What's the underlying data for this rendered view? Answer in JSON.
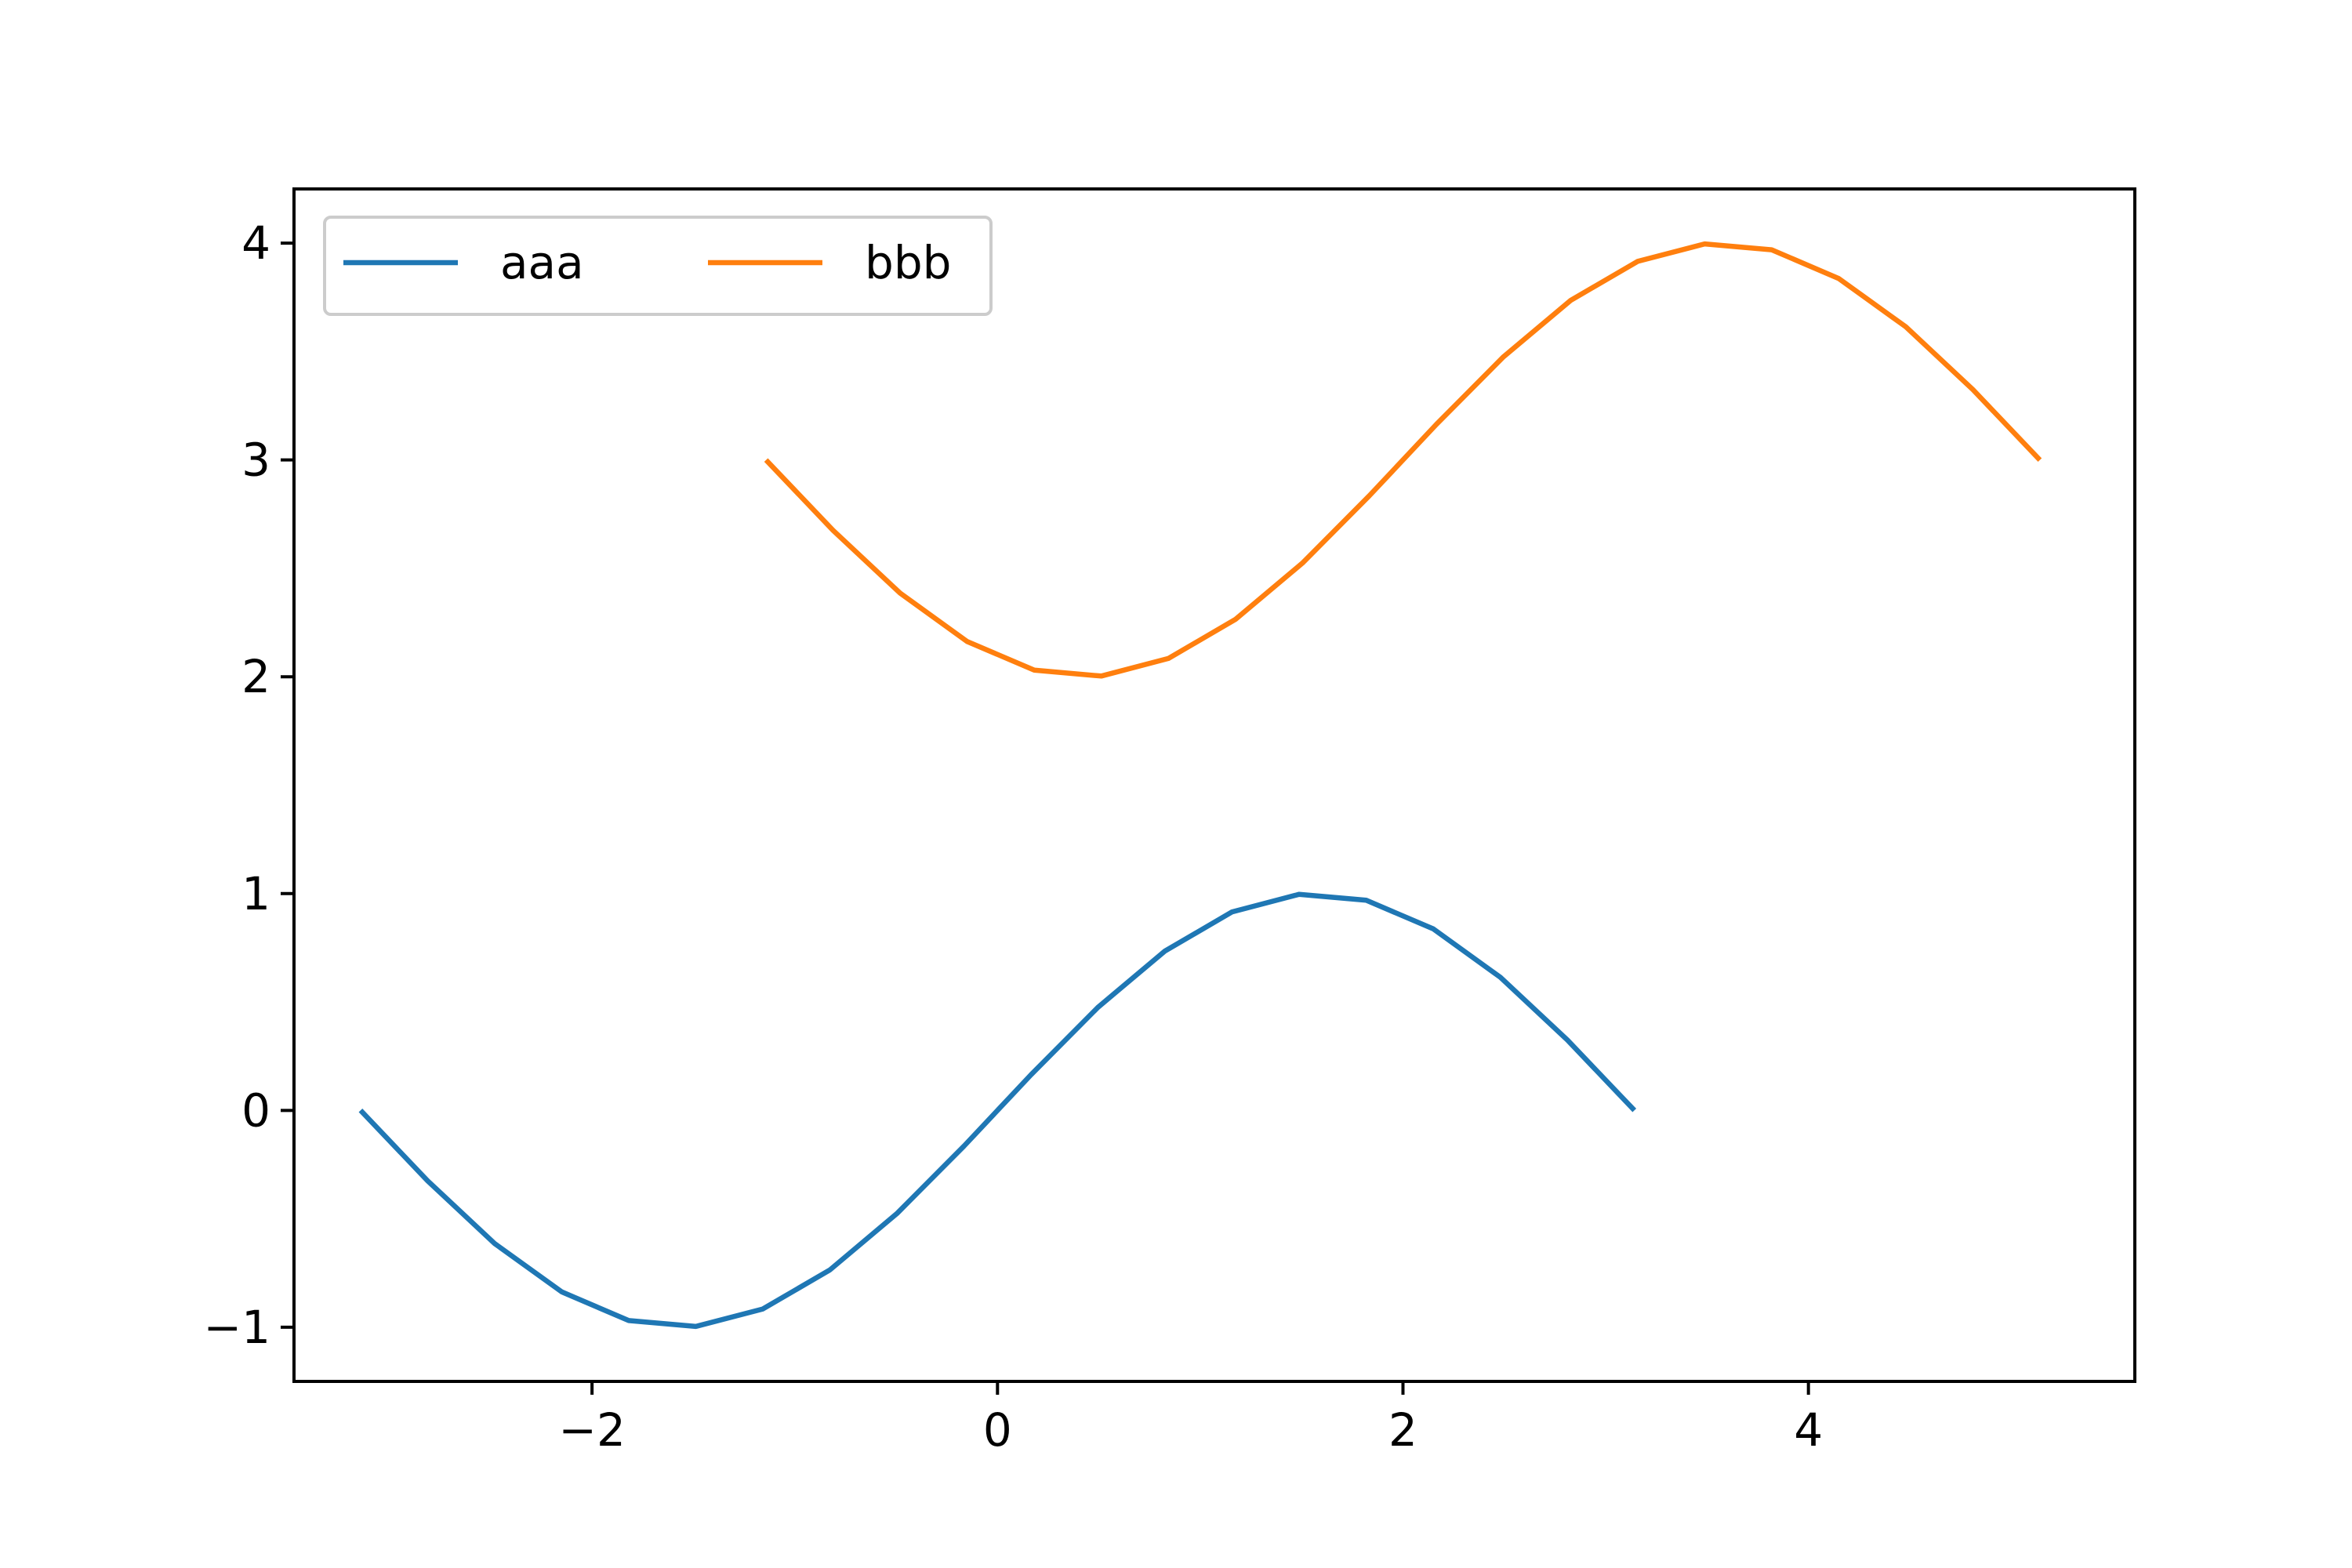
{
  "chart_data": {
    "type": "line",
    "title": "",
    "xlabel": "",
    "ylabel": "",
    "xlim": [
      -3.47,
      5.61
    ],
    "ylim": [
      -1.25,
      4.25
    ],
    "grid": false,
    "legend": {
      "placement": "top-left",
      "columns": 2
    },
    "x_ticks": [
      {
        "value": -2,
        "label": "−2"
      },
      {
        "value": 0,
        "label": "0"
      },
      {
        "value": 2,
        "label": "2"
      },
      {
        "value": 4,
        "label": "4"
      }
    ],
    "y_ticks": [
      {
        "value": -1,
        "label": "−1"
      },
      {
        "value": 0,
        "label": "0"
      },
      {
        "value": 1,
        "label": "1"
      },
      {
        "value": 2,
        "label": "2"
      },
      {
        "value": 3,
        "label": "3"
      },
      {
        "value": 4,
        "label": "4"
      }
    ],
    "series": [
      {
        "name": "aaa",
        "color": "#1f77b4",
        "x": [
          -3.1416,
          -2.8109,
          -2.4802,
          -2.1495,
          -1.8188,
          -1.4881,
          -1.1574,
          -0.8267,
          -0.496,
          -0.1653,
          0.1653,
          0.496,
          0.8267,
          1.1574,
          1.4881,
          1.8188,
          2.1495,
          2.4802,
          2.8109,
          3.1416
        ],
        "y": [
          0.0,
          -0.3247,
          -0.6142,
          -0.8372,
          -0.9694,
          -0.9966,
          -0.9158,
          -0.7357,
          -0.4759,
          -0.1646,
          0.1646,
          0.4759,
          0.7357,
          0.9158,
          0.9966,
          0.9694,
          0.8372,
          0.6142,
          0.3247,
          0.0
        ]
      },
      {
        "name": "bbb",
        "color": "#ff7f0e",
        "x": [
          -1.1416,
          -0.8109,
          -0.4802,
          -0.1495,
          0.1812,
          0.5119,
          0.8426,
          1.1733,
          1.504,
          1.8347,
          2.1653,
          2.496,
          2.8267,
          3.1574,
          3.4881,
          3.8188,
          4.1495,
          4.4802,
          4.8109,
          5.1416
        ],
        "y": [
          3.0,
          2.6753,
          2.3858,
          2.1628,
          2.0306,
          2.0034,
          2.0842,
          2.2643,
          2.5241,
          2.8354,
          3.1646,
          3.4759,
          3.7357,
          3.9158,
          3.9966,
          3.9694,
          3.8372,
          3.6142,
          3.3247,
          3.0
        ]
      }
    ]
  }
}
